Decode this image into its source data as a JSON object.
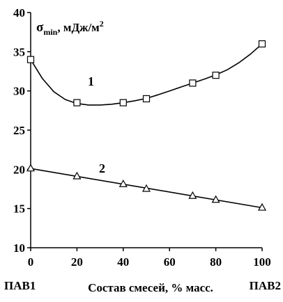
{
  "chart_data": {
    "type": "line",
    "ylabel": {
      "symbol": "σ",
      "subscript": "min",
      "unit": ", мДж/м",
      "superscript": "2"
    },
    "xlabel": "Состав смесей, % масс.",
    "x_end_labels": {
      "left": "ПАВ1",
      "right": "ПАВ2"
    },
    "xlim": [
      0,
      100
    ],
    "ylim": [
      10,
      40
    ],
    "xticks": [
      0,
      20,
      40,
      60,
      80,
      100
    ],
    "yticks": [
      10,
      15,
      20,
      25,
      30,
      35,
      40
    ],
    "grid": false,
    "series": [
      {
        "name": "1",
        "marker": "square",
        "color": "#000000",
        "points": [
          {
            "x": 0,
            "y": 34
          },
          {
            "x": 20,
            "y": 28.5
          },
          {
            "x": 40,
            "y": 28.5
          },
          {
            "x": 50,
            "y": 29
          },
          {
            "x": 70,
            "y": 31
          },
          {
            "x": 80,
            "y": 32
          },
          {
            "x": 100,
            "y": 36
          }
        ],
        "curve": [
          {
            "x": 0,
            "y": 34
          },
          {
            "x": 5,
            "y": 31.6
          },
          {
            "x": 10,
            "y": 29.9
          },
          {
            "x": 15,
            "y": 28.9
          },
          {
            "x": 20,
            "y": 28.4
          },
          {
            "x": 25,
            "y": 28.2
          },
          {
            "x": 30,
            "y": 28.2
          },
          {
            "x": 35,
            "y": 28.3
          },
          {
            "x": 40,
            "y": 28.5
          },
          {
            "x": 45,
            "y": 28.75
          },
          {
            "x": 50,
            "y": 29.05
          },
          {
            "x": 55,
            "y": 29.5
          },
          {
            "x": 60,
            "y": 30
          },
          {
            "x": 65,
            "y": 30.5
          },
          {
            "x": 70,
            "y": 31
          },
          {
            "x": 75,
            "y": 31.5
          },
          {
            "x": 80,
            "y": 32.05
          },
          {
            "x": 85,
            "y": 32.7
          },
          {
            "x": 90,
            "y": 33.6
          },
          {
            "x": 95,
            "y": 34.7
          },
          {
            "x": 100,
            "y": 36
          }
        ]
      },
      {
        "name": "2",
        "marker": "triangle",
        "color": "#000000",
        "points": [
          {
            "x": 0,
            "y": 20.1
          },
          {
            "x": 20,
            "y": 19.1
          },
          {
            "x": 40,
            "y": 18.1
          },
          {
            "x": 50,
            "y": 17.5
          },
          {
            "x": 70,
            "y": 16.6
          },
          {
            "x": 80,
            "y": 16.1
          },
          {
            "x": 100,
            "y": 15.1
          }
        ],
        "curve": [
          {
            "x": 0,
            "y": 20.1
          },
          {
            "x": 100,
            "y": 15.1
          }
        ]
      }
    ]
  }
}
